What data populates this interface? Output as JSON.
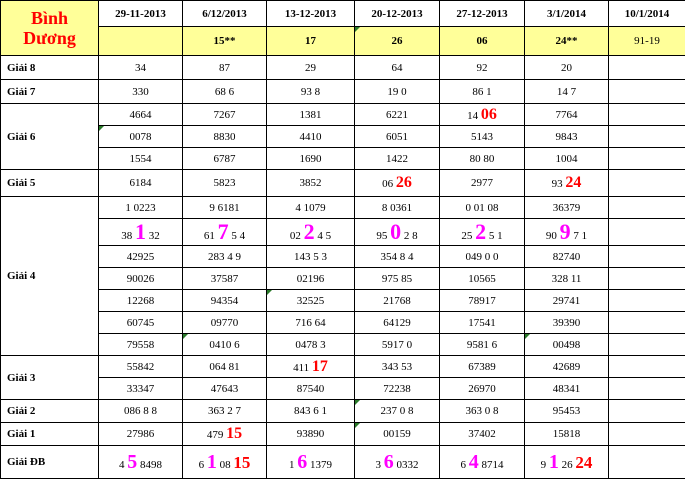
{
  "header": {
    "brand_line1": "Bình",
    "brand_line2": "Dương",
    "dates": [
      "29-11-2013",
      "6/12/2013",
      "13-12-2013",
      "20-12-2013",
      "27-12-2013",
      "3/1/2014",
      "10/1/2014"
    ],
    "lucky": [
      "",
      "15**",
      "17",
      "26",
      "06",
      "24**",
      "91-19"
    ]
  },
  "prizes": {
    "g8": {
      "label": "Giải 8",
      "values": [
        "34",
        "87",
        "29",
        "64",
        "92",
        "20"
      ]
    },
    "g7": {
      "label": "Giải 7",
      "values": [
        "330",
        "68 6",
        "93 8",
        "19 0",
        "86 1",
        "14 7"
      ]
    },
    "g6": {
      "label": "Giải 6",
      "rows": [
        [
          "4664",
          "7267",
          "1381",
          "6221",
          [
            "14 ",
            "06"
          ],
          "7764"
        ],
        [
          "0078",
          "8830",
          "4410",
          "6051",
          "5143",
          "9843"
        ],
        [
          "1554",
          "6787",
          "1690",
          "1422",
          "80 80",
          "1004"
        ]
      ]
    },
    "g5": {
      "label": "Giải 5",
      "values": [
        "6184",
        "5823",
        "3852",
        [
          "06 ",
          "26"
        ],
        "2977",
        [
          "93 ",
          "24"
        ]
      ]
    },
    "g4": {
      "label": "Giải 4",
      "rows": [
        [
          "1 0223",
          "9 6181",
          "4 1079",
          "8 0361",
          "0 01 08",
          "36379"
        ],
        [
          [
            "38 ",
            "1",
            " 32"
          ],
          [
            "61 ",
            "7",
            " 5 4"
          ],
          [
            "02 ",
            "2",
            " 4 5"
          ],
          [
            "95 ",
            "0",
            " 2 8"
          ],
          [
            "25 ",
            "2",
            " 5 1"
          ],
          [
            "90 ",
            "9",
            " 7 1"
          ]
        ],
        [
          "42925",
          "283 4 9",
          "143 5 3",
          "354 8 4",
          "049 0 0",
          "82740"
        ],
        [
          "90026",
          "37587",
          "02196",
          "975 85",
          "10565",
          "328 11"
        ],
        [
          "12268",
          "94354",
          "32525",
          "21768",
          "78917",
          "29741"
        ],
        [
          "60745",
          "09770",
          "716 64",
          "64129",
          "17541",
          "39390"
        ],
        [
          "79558",
          "0410 6",
          "0478 3",
          "5917 0",
          "9581 6",
          "00498"
        ]
      ]
    },
    "g3": {
      "label": "Giải 3",
      "rows": [
        [
          "55842",
          "064 81",
          [
            "411 ",
            "17"
          ],
          "343 53",
          "67389",
          "42689"
        ],
        [
          "33347",
          "47643",
          "87540",
          "72238",
          "26970",
          "48341"
        ]
      ]
    },
    "g2": {
      "label": "Giải 2",
      "values": [
        "086 8 8",
        "363 2 7",
        "843 6 1",
        "237 0 8",
        "363 0 8",
        "95453"
      ]
    },
    "g1": {
      "label": "Giải 1",
      "values": [
        "27986",
        [
          "479 ",
          "15"
        ],
        "93890",
        "00159",
        "37402",
        "15818"
      ]
    },
    "gdb": {
      "label": "Giải ĐB",
      "values": [
        [
          "4 ",
          "5",
          " 8498",
          ""
        ],
        [
          "6 ",
          "1",
          " 08 ",
          "15"
        ],
        [
          "1 ",
          "6",
          " 1379",
          ""
        ],
        [
          "3 ",
          "6",
          " 0332",
          ""
        ],
        [
          "6 ",
          "4",
          " 8714",
          ""
        ],
        [
          "9 ",
          "1",
          " 26 ",
          "24"
        ]
      ]
    }
  }
}
